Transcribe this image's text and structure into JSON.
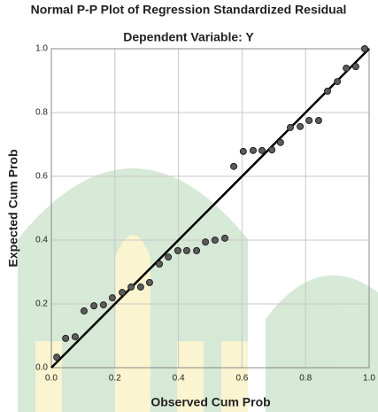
{
  "chart_data": {
    "type": "scatter",
    "title": "Normal P-P Plot of Regression Standardized Residual",
    "subtitle": "Dependent Variable: Y",
    "x_label": "Observed Cum Prob",
    "y_label": "Expected Cum Prob",
    "x": [
      0.017,
      0.045,
      0.075,
      0.103,
      0.134,
      0.164,
      0.192,
      0.223,
      0.251,
      0.281,
      0.309,
      0.34,
      0.368,
      0.398,
      0.426,
      0.457,
      0.485,
      0.515,
      0.546,
      0.574,
      0.604,
      0.635,
      0.663,
      0.694,
      0.721,
      0.752,
      0.783,
      0.811,
      0.841,
      0.869,
      0.9,
      0.928,
      0.958,
      0.986
    ],
    "values": [
      0.033,
      0.092,
      0.097,
      0.178,
      0.194,
      0.197,
      0.219,
      0.236,
      0.253,
      0.253,
      0.267,
      0.325,
      0.347,
      0.367,
      0.367,
      0.367,
      0.394,
      0.4,
      0.406,
      0.631,
      0.678,
      0.681,
      0.681,
      0.683,
      0.706,
      0.753,
      0.756,
      0.775,
      0.775,
      0.867,
      0.897,
      0.939,
      0.944,
      1.0
    ],
    "color": "#5c5c5c",
    "xlim": [
      0,
      1
    ],
    "ylim": [
      0,
      1
    ],
    "xticks": [
      {
        "value": 0,
        "label": "0.0"
      },
      {
        "value": 0.2,
        "label": "0.2"
      },
      {
        "value": 0.4,
        "label": "0.4"
      },
      {
        "value": 0.6,
        "label": "0.6"
      },
      {
        "value": 0.8,
        "label": "0.8"
      },
      {
        "value": 1,
        "label": "1.0"
      }
    ],
    "yticks": [
      {
        "value": 0,
        "label": "0.0"
      },
      {
        "value": 0.2,
        "label": "0.2"
      },
      {
        "value": 0.4,
        "label": "0.4"
      },
      {
        "value": 0.6,
        "label": "0.6"
      },
      {
        "value": 0.8,
        "label": "0.8"
      },
      {
        "value": 1,
        "label": "1.0"
      }
    ],
    "grid": true
  }
}
